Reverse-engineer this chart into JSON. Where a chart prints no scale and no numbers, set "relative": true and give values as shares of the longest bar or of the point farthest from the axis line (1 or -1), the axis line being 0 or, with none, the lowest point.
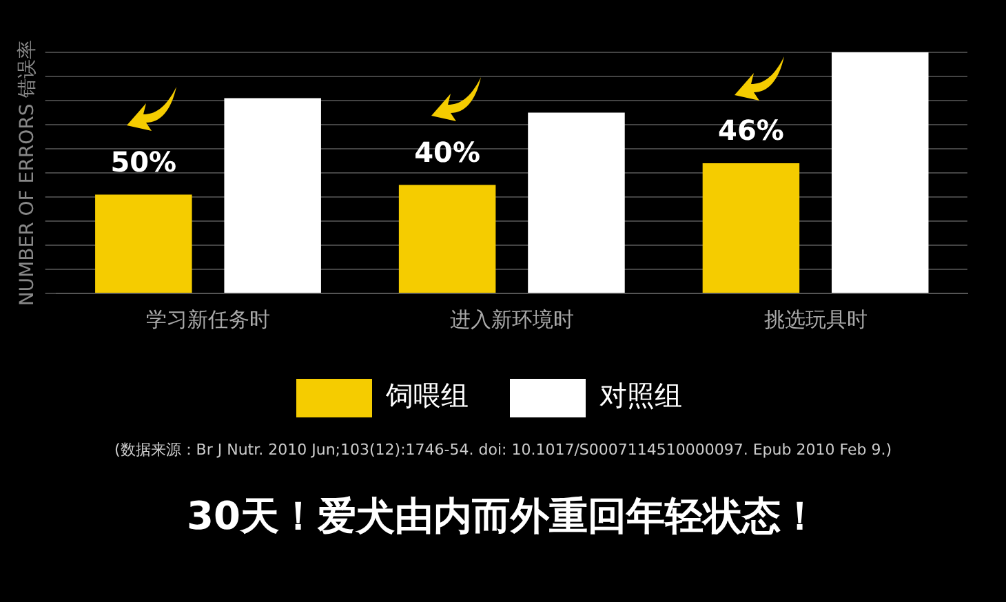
{
  "chart_data": {
    "type": "bar",
    "relative": true,
    "ylabel": "NUMBER OF ERRORS 错误率",
    "categories": [
      "学习新任务时",
      "进入新环境时",
      "挑选玩具时"
    ],
    "series": [
      {
        "name": "饲喂组",
        "color": "#f5cc00",
        "values": [
          0.41,
          0.45,
          0.54
        ]
      },
      {
        "name": "对照组",
        "color": "#ffffff",
        "values": [
          0.81,
          0.75,
          1
        ]
      }
    ],
    "grid": "y",
    "legend": "bottom",
    "annotations": [
      "50%",
      "40%",
      "46%",
      "(数据来源：Br J Nutr. 2010 Jun;103(12):1746-54. doi: 10.1017/S0007114510000097. Epub 2010 Feb 9.)",
      "30天！爱犬由内而外重回年轻状态！"
    ]
  }
}
